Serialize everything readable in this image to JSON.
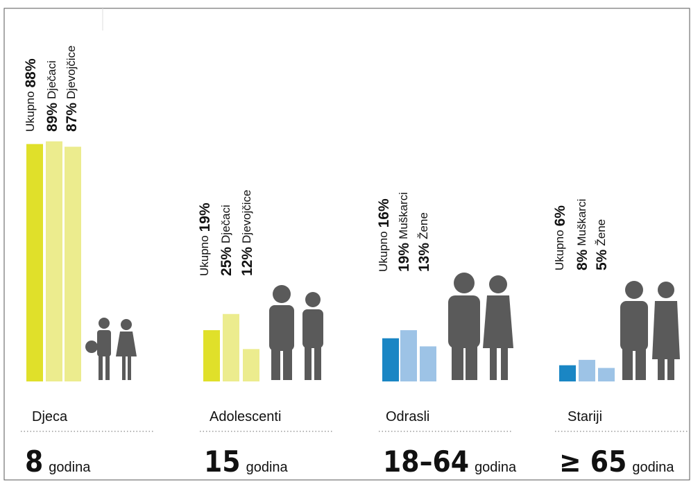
{
  "chart_data": {
    "type": "bar",
    "ylim": [
      0,
      100
    ],
    "groups": [
      {
        "name": "Djeca",
        "age": "8",
        "unit": "godina",
        "labels": [
          "Ukupno",
          "Dječaci",
          "Djevojčice"
        ],
        "values": [
          88,
          89,
          87
        ],
        "value_labels": [
          "88%",
          "89%",
          "87%"
        ],
        "colors": [
          "#e0e02a",
          "#ecec8e",
          "#ecec8e"
        ]
      },
      {
        "name": "Adolescenti",
        "age": "15",
        "unit": "godina",
        "labels": [
          "Ukupno",
          "Dječaci",
          "Djevojčice"
        ],
        "values": [
          19,
          25,
          12
        ],
        "value_labels": [
          "19%",
          "25%",
          "12%"
        ],
        "colors": [
          "#e0e02a",
          "#ecec8e",
          "#ecec8e"
        ]
      },
      {
        "name": "Odrasli",
        "age": "18–64",
        "unit": "godina",
        "labels": [
          "Ukupno",
          "Muškarci",
          "Žene"
        ],
        "values": [
          16,
          19,
          13
        ],
        "value_labels": [
          "16%",
          "19%",
          "13%"
        ],
        "colors": [
          "#1a86c4",
          "#9dc3e6",
          "#9dc3e6"
        ]
      },
      {
        "name": "Stariji",
        "age": "≥ 65",
        "unit": "godina",
        "labels": [
          "Ukupno",
          "Muškarci",
          "Žene"
        ],
        "values": [
          6,
          8,
          5
        ],
        "value_labels": [
          "6%",
          "8%",
          "5%"
        ],
        "colors": [
          "#1a86c4",
          "#9dc3e6",
          "#9dc3e6"
        ]
      }
    ]
  }
}
